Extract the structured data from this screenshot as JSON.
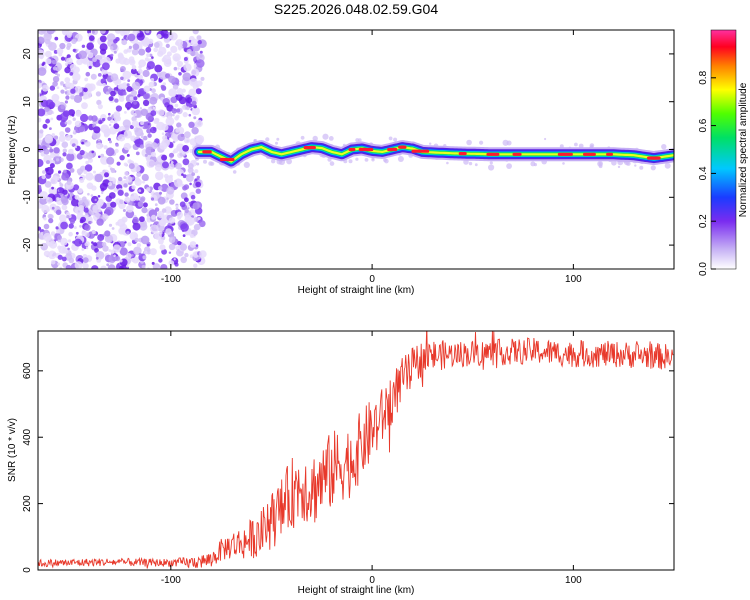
{
  "figure": {
    "title": "S225.2026.048.02.59.G04"
  },
  "chart_data": [
    {
      "type": "heatmap",
      "name": "spectrogram",
      "xlabel": "Height of straight line (km)",
      "ylabel": "Frequency (Hz)",
      "xlim": [
        -166,
        150
      ],
      "ylim": [
        -25,
        25
      ],
      "xticks": [
        -100,
        0,
        100
      ],
      "yticks": [
        -20,
        -10,
        0,
        10,
        20
      ],
      "noise_region_x": [
        -166,
        -84
      ],
      "ridge": {
        "x": [
          -86,
          -80,
          -75,
          -70,
          -65,
          -60,
          -55,
          -50,
          -45,
          -40,
          -35,
          -30,
          -25,
          -20,
          -15,
          -10,
          -5,
          0,
          5,
          10,
          15,
          20,
          25,
          30,
          40,
          60,
          80,
          100,
          120,
          130,
          140,
          150
        ],
        "y": [
          -0.5,
          -0.5,
          -1.5,
          -2.5,
          -1.0,
          0.0,
          0.5,
          -0.5,
          -1.0,
          -0.5,
          0.0,
          0.5,
          0.3,
          -0.5,
          -1.0,
          0.0,
          0.2,
          -0.3,
          -0.5,
          0.0,
          0.5,
          0.2,
          -0.5,
          -0.6,
          -0.8,
          -1.0,
          -1.0,
          -1.0,
          -1.0,
          -1.2,
          -1.8,
          -1.2
        ]
      },
      "colorbar": {
        "label": "Normalized spectral amplitude",
        "range": [
          0,
          1
        ],
        "ticks": [
          "0.0",
          "0.2",
          "0.4",
          "0.6",
          "0.8"
        ]
      }
    },
    {
      "type": "line",
      "name": "snr",
      "xlabel": "Height of straight line (km)",
      "ylabel": "SNR (10 * v/v)",
      "xlim": [
        -166,
        150
      ],
      "ylim": [
        0,
        720
      ],
      "xticks": [
        -100,
        0,
        100
      ],
      "yticks": [
        0,
        200,
        400,
        600
      ],
      "color": "#e8392b",
      "series": [
        {
          "name": "SNR",
          "x": [
            -166,
            -150,
            -130,
            -110,
            -90,
            -80,
            -75,
            -70,
            -65,
            -60,
            -55,
            -50,
            -45,
            -40,
            -35,
            -30,
            -25,
            -20,
            -15,
            -10,
            -5,
            0,
            5,
            10,
            15,
            20,
            25,
            30,
            40,
            60,
            80,
            100,
            120,
            140,
            150
          ],
          "y": [
            20,
            22,
            24,
            22,
            22,
            30,
            60,
            75,
            80,
            95,
            110,
            150,
            180,
            230,
            260,
            240,
            270,
            300,
            320,
            330,
            380,
            420,
            460,
            520,
            570,
            610,
            640,
            645,
            650,
            655,
            660,
            650,
            650,
            645,
            640
          ]
        }
      ],
      "noise_envelope": {
        "x": [
          -166,
          -100,
          -80,
          -60,
          -40,
          -20,
          0,
          20,
          40,
          80,
          150
        ],
        "amp": [
          12,
          12,
          25,
          60,
          110,
          120,
          100,
          60,
          40,
          40,
          40
        ]
      }
    }
  ]
}
